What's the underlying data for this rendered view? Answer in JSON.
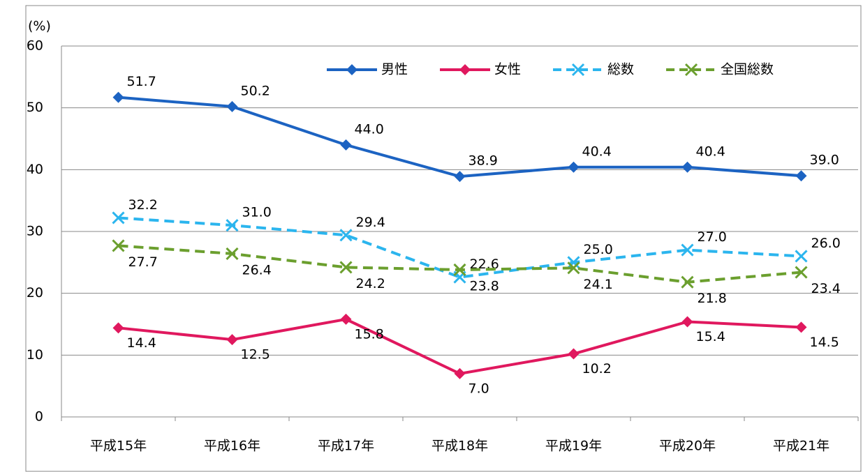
{
  "chart_data": {
    "type": "line",
    "y_label": "(%)",
    "categories": [
      "平成15年",
      "平成16年",
      "平成17年",
      "平成18年",
      "平成19年",
      "平成20年",
      "平成21年"
    ],
    "series": [
      {
        "name": "男性",
        "color": "#1c63c2",
        "dashed": false,
        "marker": "diamond",
        "values": [
          51.7,
          50.2,
          44.0,
          38.9,
          40.4,
          40.4,
          39.0
        ],
        "value_labels": [
          "51.7",
          "50.2",
          "44.0",
          "38.9",
          "40.4",
          "40.4",
          "39.0"
        ]
      },
      {
        "name": "女性",
        "color": "#e0185e",
        "dashed": false,
        "marker": "diamond",
        "values": [
          14.4,
          12.5,
          15.8,
          7.0,
          10.2,
          15.4,
          14.5
        ],
        "value_labels": [
          "14.4",
          "12.5",
          "15.8",
          "7.0",
          "10.2",
          "15.4",
          "14.5"
        ]
      },
      {
        "name": "総数",
        "color": "#2bb5ee",
        "dashed": true,
        "marker": "x",
        "values": [
          32.2,
          31.0,
          29.4,
          22.6,
          25.0,
          27.0,
          26.0
        ],
        "value_labels": [
          "32.2",
          "31.0",
          "29.4",
          "22.6",
          "25.0",
          "27.0",
          "26.0"
        ]
      },
      {
        "name": "全国総数",
        "color": "#6b9f2e",
        "dashed": true,
        "marker": "x",
        "values": [
          27.7,
          26.4,
          24.2,
          23.8,
          24.1,
          21.8,
          23.4
        ],
        "value_labels": [
          "27.7",
          "26.4",
          "24.2",
          "23.8",
          "24.1",
          "21.8",
          "23.4"
        ]
      }
    ],
    "ylim": [
      0,
      60
    ],
    "yticks": [
      0,
      10,
      20,
      30,
      40,
      50,
      60
    ],
    "grid": true,
    "legend": "top-right"
  }
}
